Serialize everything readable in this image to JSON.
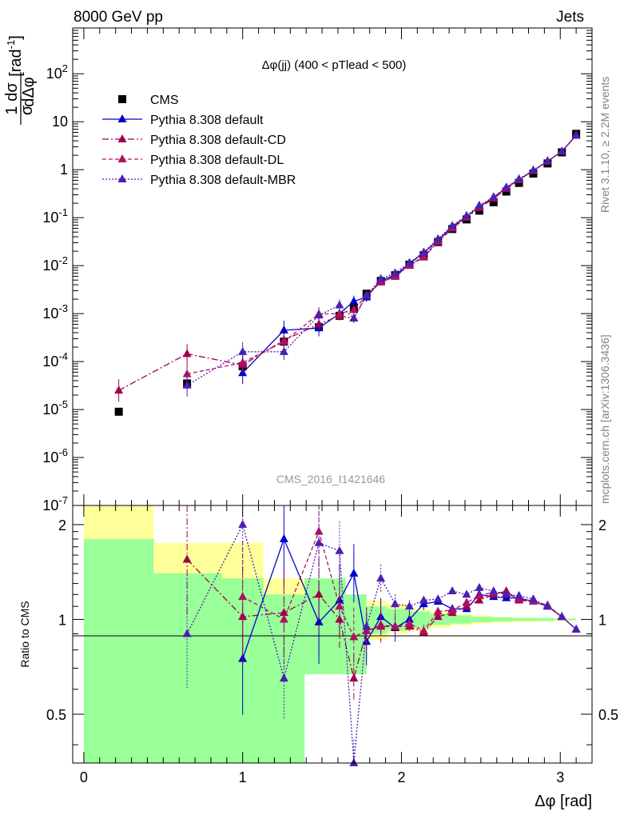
{
  "header": {
    "left": "8000 GeV pp",
    "right": "Jets"
  },
  "side_labels": {
    "rivet": "Rivet 3.1.10, ≥ 2.2M events",
    "mcplots": "mcplots.cern.ch [arXiv:1306.3436]"
  },
  "watermark": "CMS_2016_I1421646",
  "chart_data": [
    {
      "type": "scatter",
      "panel": "main",
      "title": "Δφ(jj) (400 < pTlead <  500)",
      "xlabel": "Δφ [rad]",
      "ylabel": "1/σ dσ/dΔφ [rad⁻¹]",
      "ylabel_parts": {
        "num": "1",
        "den": "σ",
        "dnum": "dσ",
        "dden": "dΔφ",
        "unit": "[rad",
        "unit_exp": "-1",
        "unit_close": "]"
      },
      "yscale": "log",
      "xlim": [
        -0.07,
        3.2
      ],
      "ylim": [
        1e-07,
        900
      ],
      "x_ticks": [
        "0",
        "1",
        "2",
        "3"
      ],
      "y_ticks": [
        {
          "base": "10",
          "exp": "-7",
          "v": 1e-07
        },
        {
          "base": "10",
          "exp": "-6",
          "v": 1e-06
        },
        {
          "base": "10",
          "exp": "-5",
          "v": 1e-05
        },
        {
          "base": "10",
          "exp": "-4",
          "v": 0.0001
        },
        {
          "base": "10",
          "exp": "-3",
          "v": 0.001
        },
        {
          "base": "10",
          "exp": "-2",
          "v": 0.01
        },
        {
          "base": "10",
          "exp": "-1",
          "v": 0.1
        },
        {
          "base": "1",
          "exp": "",
          "v": 1
        },
        {
          "base": "10",
          "exp": "",
          "v": 10
        },
        {
          "base": "10",
          "exp": "2",
          "v": 100
        }
      ],
      "legend_position": "top-left",
      "series": [
        {
          "name": "CMS",
          "kind": "data",
          "color": "#000000",
          "x": [
            0.22,
            0.65,
            1.0,
            1.26,
            1.48,
            1.61,
            1.7,
            1.78,
            1.87,
            1.96,
            2.05,
            2.14,
            2.23,
            2.32,
            2.41,
            2.49,
            2.58,
            2.66,
            2.74,
            2.83,
            2.92,
            3.01,
            3.1
          ],
          "y": [
            9e-06,
            3.5e-05,
            8e-05,
            0.00026,
            0.00052,
            0.0009,
            0.0013,
            0.0026,
            0.0048,
            0.0063,
            0.0105,
            0.0165,
            0.031,
            0.058,
            0.092,
            0.14,
            0.21,
            0.35,
            0.53,
            0.83,
            1.35,
            2.3,
            5.6
          ]
        },
        {
          "name": "Pythia 8.308 default",
          "kind": "mc",
          "color": "#0000cc",
          "dash": "",
          "x": [
            1.0,
            1.26,
            1.48,
            1.61,
            1.7,
            1.78,
            1.87,
            1.96,
            2.05,
            2.14,
            2.23,
            2.32,
            2.41,
            2.49,
            2.58,
            2.66,
            2.74,
            2.83,
            2.92,
            3.01,
            3.1
          ],
          "y": [
            5.8e-05,
            0.00045,
            0.0005,
            0.001,
            0.0018,
            0.0022,
            0.0049,
            0.0063,
            0.011,
            0.0185,
            0.034,
            0.065,
            0.105,
            0.17,
            0.26,
            0.42,
            0.62,
            0.95,
            1.5,
            2.4,
            5.2
          ]
        },
        {
          "name": "Pythia 8.308 default-CD",
          "kind": "mc",
          "color": "#a0004c",
          "dash": "8,3,2,3",
          "x": [
            0.22,
            0.65,
            1.0,
            1.26,
            1.48,
            1.61,
            1.7,
            1.78,
            1.87,
            1.96,
            2.05,
            2.14,
            2.23,
            2.32,
            2.41,
            2.49,
            2.58,
            2.66,
            2.74,
            2.83,
            2.92,
            3.01,
            3.1
          ],
          "y": [
            2.5e-05,
            0.000145,
            8.5e-05,
            0.00028,
            0.0006,
            0.0009,
            0.0008,
            0.0024,
            0.0045,
            0.0059,
            0.01,
            0.015,
            0.031,
            0.06,
            0.1,
            0.16,
            0.25,
            0.4,
            0.61,
            0.95,
            1.5,
            2.4,
            5.2
          ]
        },
        {
          "name": "Pythia 8.308 default-DL",
          "kind": "mc",
          "color": "#b01060",
          "dash": "5,3",
          "x": [
            0.65,
            1.0,
            1.26,
            1.48,
            1.61,
            1.7,
            1.78,
            1.87,
            1.96,
            2.05,
            2.14,
            2.23,
            2.32,
            2.41,
            2.49,
            2.58,
            2.66,
            2.74,
            2.83,
            2.92,
            3.01,
            3.1
          ],
          "y": [
            5.5e-05,
            9.5e-05,
            0.00026,
            0.00098,
            0.001,
            0.0012,
            0.0024,
            0.0046,
            0.006,
            0.0102,
            0.0155,
            0.033,
            0.062,
            0.105,
            0.17,
            0.26,
            0.42,
            0.62,
            0.95,
            1.5,
            2.4,
            5.2
          ]
        },
        {
          "name": "Pythia 8.308 default-MBR",
          "kind": "mc",
          "color": "#4b1fb4",
          "dash": "2,2",
          "x": [
            0.65,
            1.0,
            1.26,
            1.48,
            1.61,
            1.7,
            1.78,
            1.87,
            1.96,
            2.05,
            2.14,
            2.23,
            2.32,
            2.41,
            2.49,
            2.58,
            2.66,
            2.74,
            2.83,
            2.92,
            3.01,
            3.1
          ],
          "y": [
            3.2e-05,
            0.00016,
            0.00016,
            0.00092,
            0.0015,
            0.0008,
            0.0024,
            0.0053,
            0.007,
            0.0115,
            0.019,
            0.036,
            0.068,
            0.11,
            0.18,
            0.27,
            0.43,
            0.64,
            0.98,
            1.52,
            2.4,
            5.2
          ]
        }
      ]
    },
    {
      "type": "scatter",
      "panel": "ratio",
      "ylabel": "Ratio to CMS",
      "xlabel": "Δφ [rad]",
      "yscale": "log",
      "xlim": [
        -0.07,
        3.2
      ],
      "ylim": [
        0.35,
        2.3
      ],
      "y_ticks": [
        "0.5",
        "1",
        "2"
      ],
      "x_ticks": [
        "0",
        "1",
        "2",
        "3"
      ],
      "uncertainty_bands": {
        "edges": [
          0.0,
          0.44,
          0.87,
          1.13,
          1.26,
          1.39,
          1.52,
          1.65,
          1.78,
          1.91,
          2.05,
          2.18,
          2.31,
          2.44,
          2.57,
          2.7,
          2.83,
          2.96,
          3.1
        ],
        "inner_lo": [
          0.35,
          0.35,
          0.35,
          0.35,
          0.35,
          0.67,
          0.67,
          0.67,
          0.9,
          0.92,
          0.94,
          0.96,
          0.97,
          0.98,
          0.985,
          0.99,
          0.99,
          0.995
        ],
        "inner_hi": [
          1.8,
          1.4,
          1.35,
          1.2,
          1.2,
          1.35,
          1.35,
          1.2,
          1.1,
          1.08,
          1.06,
          1.04,
          1.03,
          1.02,
          1.015,
          1.01,
          1.01,
          1.005
        ],
        "outer_lo": [
          0.35,
          0.67,
          0.67,
          0.35,
          0.67,
          0.67,
          0.67,
          0.67,
          0.86,
          0.9,
          0.92,
          0.94,
          0.96,
          0.97,
          0.975,
          0.98,
          0.985,
          0.99
        ],
        "outer_hi": [
          2.3,
          1.75,
          1.75,
          1.35,
          1.35,
          1.35,
          1.35,
          1.2,
          1.15,
          1.12,
          1.08,
          1.06,
          1.04,
          1.03,
          1.02,
          1.015,
          1.01,
          1.008
        ]
      },
      "series": [
        {
          "name": "Pythia 8.308 default",
          "x": [
            1.0,
            1.26,
            1.48,
            1.61,
            1.7,
            1.78,
            1.87,
            1.96,
            2.05,
            2.14,
            2.23,
            2.32,
            2.41,
            2.49,
            2.58,
            2.66,
            2.74,
            2.83,
            2.92,
            3.01,
            3.1
          ],
          "y": [
            0.75,
            1.8,
            0.98,
            1.15,
            1.4,
            0.85,
            1.02,
            0.94,
            1.0,
            1.12,
            1.14,
            1.08,
            1.08,
            1.2,
            1.18,
            1.17,
            1.17,
            1.14,
            1.1,
            1.02,
            0.93
          ]
        },
        {
          "name": "Pythia 8.308 default-CD",
          "x": [
            0.65,
            1.0,
            1.26,
            1.48,
            1.61,
            1.7,
            1.78,
            1.87,
            1.96,
            2.05,
            2.14,
            2.23,
            2.32,
            2.41,
            2.49,
            2.58,
            2.66,
            2.74,
            2.83,
            2.92,
            3.01,
            3.1
          ],
          "y": [
            1.55,
            1.02,
            1.05,
            1.2,
            1.0,
            0.65,
            0.92,
            0.95,
            0.95,
            0.95,
            0.91,
            1.02,
            1.05,
            1.1,
            1.15,
            1.2,
            1.23,
            1.15,
            1.14,
            1.1,
            1.02,
            0.93
          ]
        },
        {
          "name": "Pythia 8.308 default-DL",
          "x": [
            1.0,
            1.26,
            1.48,
            1.61,
            1.7,
            1.78,
            1.87,
            1.96,
            2.05,
            2.14,
            2.23,
            2.32,
            2.41,
            2.49,
            2.58,
            2.66,
            2.74,
            2.83,
            2.92,
            3.01,
            3.1
          ],
          "y": [
            1.18,
            1.0,
            1.9,
            1.1,
            0.88,
            0.92,
            0.96,
            0.95,
            0.97,
            0.92,
            1.06,
            1.07,
            1.13,
            1.19,
            1.22,
            1.21,
            1.16,
            1.14,
            1.11,
            1.02,
            0.93
          ]
        },
        {
          "name": "Pythia 8.308 default-MBR",
          "x": [
            0.65,
            1.0,
            1.26,
            1.48,
            1.61,
            1.7,
            1.78,
            1.87,
            1.96,
            2.05,
            2.14,
            2.23,
            2.32,
            2.41,
            2.49,
            2.58,
            2.66,
            2.74,
            2.83,
            2.92,
            3.01,
            3.1
          ],
          "y": [
            0.9,
            2.0,
            0.65,
            1.75,
            1.65,
            0.35,
            0.95,
            1.35,
            1.12,
            1.1,
            1.15,
            1.16,
            1.23,
            1.2,
            1.26,
            1.23,
            1.2,
            1.19,
            1.16,
            1.1,
            1.02,
            0.93
          ]
        }
      ]
    }
  ]
}
